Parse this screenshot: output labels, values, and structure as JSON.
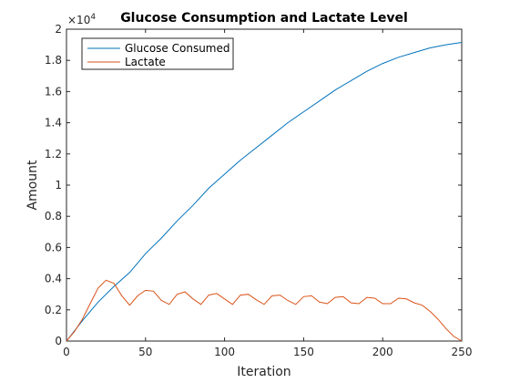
{
  "chart_data": {
    "type": "line",
    "title": "Glucose Consumption and Lactate Level",
    "xlabel": "Iteration",
    "ylabel": "Amount",
    "y_exponent_label": "×10",
    "y_exponent_value": "4",
    "xlim": [
      0,
      250
    ],
    "ylim": [
      0,
      20000
    ],
    "grid": false,
    "legend_position": "top-left",
    "x_ticks": [
      0,
      50,
      100,
      150,
      200,
      250
    ],
    "x_tick_labels": [
      "0",
      "50",
      "100",
      "150",
      "200",
      "250"
    ],
    "y_ticks": [
      0,
      2000,
      4000,
      6000,
      8000,
      10000,
      12000,
      14000,
      16000,
      18000,
      20000
    ],
    "y_tick_labels": [
      "0",
      "0.2",
      "0.4",
      "0.6",
      "0.8",
      "1",
      "1.2",
      "1.4",
      "1.6",
      "1.8",
      "2"
    ],
    "series": [
      {
        "name": "Glucose Consumed",
        "color": "#0072BD",
        "x": [
          0,
          10,
          20,
          30,
          40,
          50,
          60,
          70,
          80,
          90,
          100,
          110,
          120,
          130,
          140,
          150,
          160,
          170,
          180,
          190,
          200,
          210,
          220,
          230,
          240,
          250
        ],
        "y": [
          0,
          1300,
          2500,
          3500,
          4400,
          5600,
          6600,
          7700,
          8700,
          9800,
          10700,
          11600,
          12400,
          13200,
          14000,
          14700,
          15400,
          16100,
          16700,
          17300,
          17800,
          18200,
          18500,
          18800,
          19000,
          19150
        ]
      },
      {
        "name": "Lactate",
        "color": "#D95319",
        "x": [
          0,
          5,
          10,
          15,
          20,
          25,
          30,
          35,
          40,
          45,
          50,
          55,
          60,
          65,
          70,
          75,
          80,
          85,
          90,
          95,
          100,
          105,
          110,
          115,
          120,
          125,
          130,
          135,
          140,
          145,
          150,
          155,
          160,
          165,
          170,
          175,
          180,
          185,
          190,
          195,
          200,
          205,
          210,
          215,
          220,
          225,
          230,
          235,
          240,
          245,
          250
        ],
        "y": [
          0,
          600,
          1400,
          2400,
          3400,
          3900,
          3700,
          2900,
          2300,
          2900,
          3250,
          3200,
          2600,
          2350,
          3000,
          3150,
          2700,
          2350,
          2950,
          3050,
          2700,
          2350,
          2950,
          3000,
          2650,
          2350,
          2900,
          2950,
          2600,
          2350,
          2850,
          2900,
          2500,
          2400,
          2800,
          2850,
          2450,
          2400,
          2800,
          2750,
          2400,
          2400,
          2750,
          2700,
          2450,
          2300,
          1900,
          1400,
          800,
          300,
          0
        ]
      }
    ]
  }
}
